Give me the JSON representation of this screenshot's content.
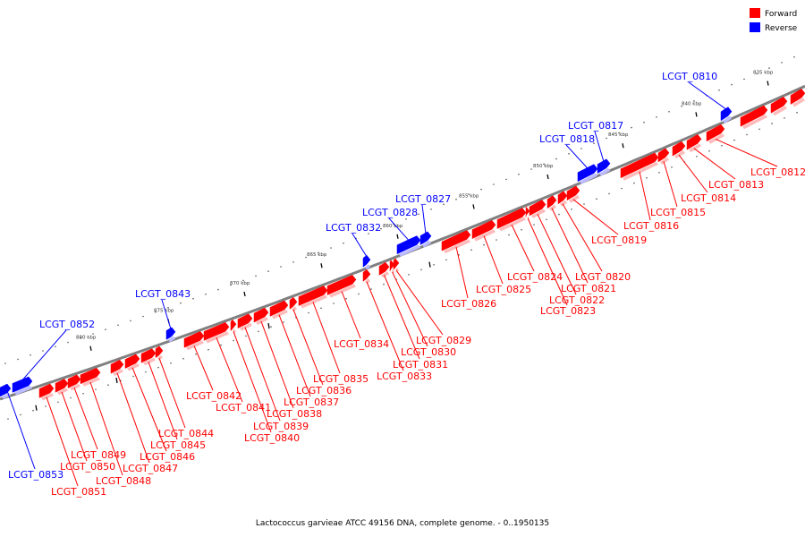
{
  "caption": "Lactococcus garvieae ATCC 49156 DNA, complete genome. - 0..1950135",
  "legend": [
    {
      "name": "Forward",
      "color": "#ff0000"
    },
    {
      "name": "Reverse",
      "color": "#0000ff"
    }
  ],
  "colors": {
    "forward": "#ff0000",
    "reverse": "#0000ff",
    "backbone": "#808080"
  },
  "scale_labels": [
    "835 kbp",
    "840 kbp",
    "845 kbp",
    "850 kbp",
    "855 kbp",
    "860 kbp",
    "865 kbp",
    "870 kbp",
    "875 kbp",
    "880 kbp"
  ],
  "genes": [
    "LCGT_0810",
    "LCGT_0812",
    "LCGT_0813",
    "LCGT_0814",
    "LCGT_0815",
    "LCGT_0816",
    "LCGT_0817",
    "LCGT_0818",
    "LCGT_0819",
    "LCGT_0820",
    "LCGT_0821",
    "LCGT_0822",
    "LCGT_0823",
    "LCGT_0824",
    "LCGT_0825",
    "LCGT_0826",
    "LCGT_0827",
    "LCGT_0828",
    "LCGT_0829",
    "LCGT_0830",
    "LCGT_0831",
    "LCGT_0832",
    "LCGT_0833",
    "LCGT_0834",
    "LCGT_0835",
    "LCGT_0836",
    "LCGT_0837",
    "LCGT_0838",
    "LCGT_0839",
    "LCGT_0840",
    "LCGT_0841",
    "LCGT_0842",
    "LCGT_0843",
    "LCGT_0844",
    "LCGT_0845",
    "LCGT_0846",
    "LCGT_0847",
    "LCGT_0848",
    "LCGT_0849",
    "LCGT_0850",
    "LCGT_0851",
    "LCGT_0852",
    "LCGT_0853"
  ]
}
